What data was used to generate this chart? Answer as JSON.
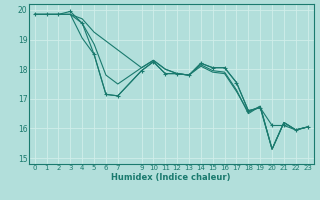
{
  "xlabel": "Humidex (Indice chaleur)",
  "xlim": [
    -0.5,
    23.5
  ],
  "ylim": [
    14.8,
    20.2
  ],
  "yticks": [
    15,
    16,
    17,
    18,
    19,
    20
  ],
  "xticks": [
    0,
    1,
    2,
    3,
    4,
    5,
    6,
    7,
    9,
    10,
    11,
    12,
    13,
    14,
    15,
    16,
    17,
    18,
    19,
    20,
    21,
    22,
    23
  ],
  "background_color": "#b2dfdb",
  "grid_color": "#d0eeea",
  "line_color": "#1a7a6e",
  "lines": [
    {
      "x": [
        0,
        1,
        2,
        3,
        4,
        5,
        6,
        7,
        9,
        10,
        11,
        12,
        13,
        14,
        15,
        16,
        17,
        18,
        19,
        20,
        21,
        22,
        23
      ],
      "y": [
        19.85,
        19.85,
        19.85,
        19.85,
        19.05,
        18.5,
        17.15,
        17.1,
        17.95,
        18.25,
        17.85,
        17.85,
        17.8,
        18.2,
        18.05,
        18.05,
        17.55,
        16.6,
        16.7,
        15.3,
        16.2,
        15.95,
        16.05
      ],
      "marker": false
    },
    {
      "x": [
        0,
        1,
        2,
        3,
        4,
        5,
        6,
        7,
        9,
        10,
        11,
        12,
        13,
        14,
        15,
        16,
        17,
        18,
        19,
        20,
        21,
        22,
        23
      ],
      "y": [
        19.85,
        19.85,
        19.85,
        19.85,
        19.55,
        18.85,
        17.8,
        17.5,
        18.05,
        18.3,
        18.0,
        17.85,
        17.8,
        18.15,
        17.95,
        17.9,
        17.3,
        16.5,
        16.75,
        15.3,
        16.2,
        15.95,
        16.05
      ],
      "marker": false
    },
    {
      "x": [
        0,
        1,
        2,
        3,
        4,
        5,
        9,
        10,
        11,
        12,
        13,
        14,
        15,
        16,
        17,
        18,
        19,
        20,
        21,
        22,
        23
      ],
      "y": [
        19.85,
        19.85,
        19.85,
        19.85,
        19.7,
        19.25,
        18.05,
        18.3,
        18.0,
        17.85,
        17.8,
        18.1,
        17.9,
        17.85,
        17.25,
        16.55,
        16.75,
        15.3,
        16.2,
        15.95,
        16.05
      ],
      "marker": false
    },
    {
      "x": [
        0,
        1,
        2,
        3,
        4,
        5,
        6,
        7,
        9,
        10,
        11,
        12,
        13,
        14,
        15,
        16,
        17,
        18,
        19,
        20,
        21,
        22,
        23
      ],
      "y": [
        19.85,
        19.85,
        19.85,
        19.95,
        19.55,
        18.5,
        17.15,
        17.1,
        17.95,
        18.25,
        17.85,
        17.85,
        17.8,
        18.2,
        18.05,
        18.05,
        17.55,
        16.6,
        16.7,
        16.1,
        16.1,
        15.95,
        16.05
      ],
      "marker": true
    }
  ]
}
